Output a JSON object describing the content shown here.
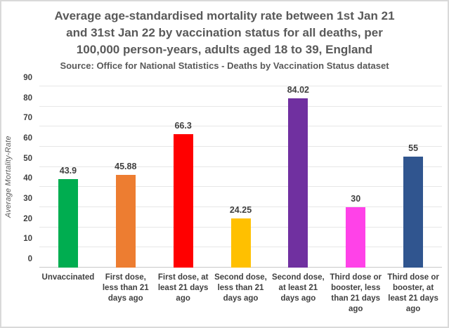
{
  "header": {
    "title_lines": [
      "Average age-standardised mortality rate between 1st Jan 21",
      "and  31st Jan 22 by vaccination status for all deaths, per",
      "100,000 person-years, adults aged 18 to 39, England"
    ],
    "source": "Source: Office for National Statistics - Deaths by Vaccination Status dataset"
  },
  "chart_data": {
    "type": "bar",
    "title": "Average age-standardised mortality rate between 1st Jan 21 and  31st Jan 22 by vaccination status for all deaths, per 100,000 person-years, adults aged 18 to 39, England",
    "subtitle": "Source: Office for National Statistics - Deaths by Vaccination Status dataset",
    "xlabel": "",
    "ylabel": "Average Mortality-Rate",
    "ylim": [
      0,
      90
    ],
    "yticks": [
      0,
      10,
      20,
      30,
      40,
      50,
      60,
      70,
      80,
      90
    ],
    "grid": true,
    "legend": "none",
    "categories": [
      "Unvaccinated",
      "First dose, less than 21 days ago",
      "First dose, at least 21 days ago",
      "Second dose, less than 21 days ago",
      "Second dose, at least 21 days ago",
      "Third dose or booster, less than 21 days ago",
      "Third dose or booster, at least 21 days ago"
    ],
    "values": [
      43.9,
      45.88,
      66.3,
      24.25,
      84.02,
      30,
      55
    ],
    "value_labels": [
      "43.9",
      "45.88",
      "66.3",
      "24.25",
      "84.02",
      "30",
      "55"
    ],
    "bar_colors": [
      "#00AD50",
      "#ED7D31",
      "#FF0000",
      "#FFC000",
      "#7030A0",
      "#FF42E8",
      "#30558F"
    ],
    "colors": {
      "title_text": "#595959",
      "tick_text": "#404040",
      "gridline": "#E7E7E7",
      "axis_line": "#C9C9C9"
    }
  }
}
